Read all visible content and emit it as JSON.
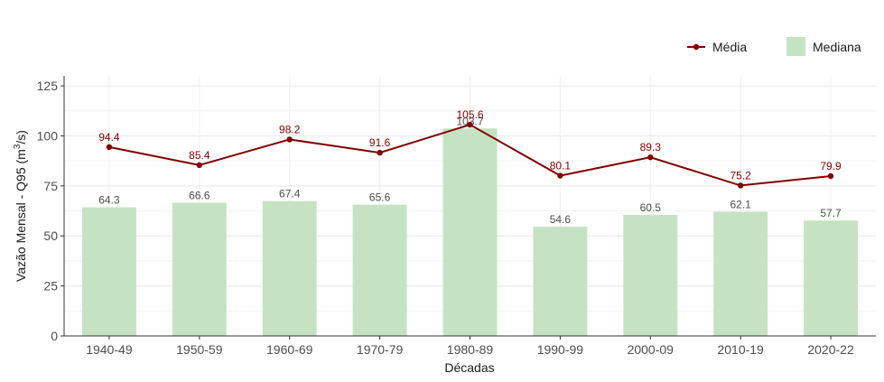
{
  "chart_data": {
    "type": "bar",
    "categories": [
      "1940-49",
      "1950-59",
      "1960-69",
      "1970-79",
      "1980-89",
      "1990-99",
      "2000-09",
      "2010-19",
      "2020-22"
    ],
    "series": [
      {
        "name": "Mediana",
        "type": "bar",
        "color": "#c5e3c3",
        "values": [
          64.3,
          66.6,
          67.4,
          65.6,
          103.7,
          54.6,
          60.5,
          62.1,
          57.7
        ]
      },
      {
        "name": "Média",
        "type": "line",
        "color": "#800000",
        "values": [
          94.4,
          85.4,
          98.2,
          91.6,
          105.6,
          80.1,
          89.3,
          75.2,
          79.9
        ]
      }
    ],
    "bar_labels": [
      "64.3",
      "66.6",
      "67.4",
      "65.6",
      "103.7",
      "54.6",
      "60.5",
      "62.1",
      "57.7"
    ],
    "line_labels": [
      "94.4",
      "85.4",
      "98.2",
      "91.6",
      "105.6",
      "80.1",
      "89.3",
      "75.2",
      "79.9"
    ],
    "xlabel": "Décadas",
    "ylabel": "Vazão Mensal - Q95 (m³/s)",
    "ylabel_parts": {
      "before": "Vazão Mensal - Q95 (m",
      "sup": "3",
      "after": "/s)"
    },
    "ylim": [
      0,
      130
    ],
    "yticks": [
      0,
      25,
      50,
      75,
      100,
      125
    ],
    "ytick_labels": [
      "0",
      "25",
      "50",
      "75",
      "100",
      "125"
    ],
    "grid": true,
    "legend_position": "top-right",
    "legend": [
      {
        "label": "Média",
        "kind": "line-point",
        "color": "#800000"
      },
      {
        "label": "Mediana",
        "kind": "box",
        "color": "#c5e3c3"
      }
    ]
  }
}
